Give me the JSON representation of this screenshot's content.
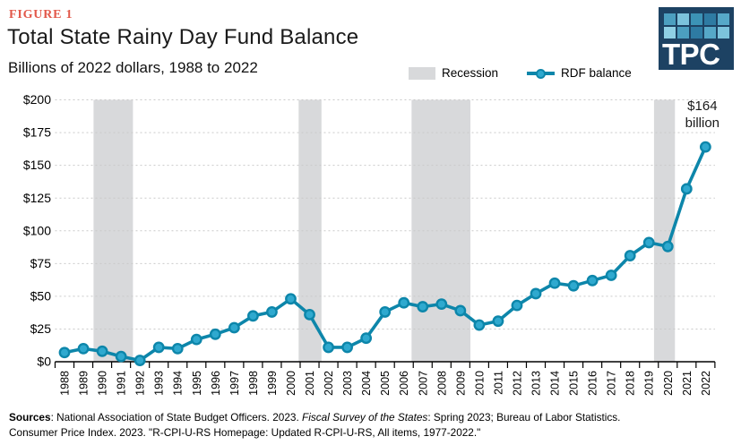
{
  "header": {
    "figure_label": "FIGURE 1",
    "title": "Total State Rainy Day Fund Balance",
    "subtitle": "Billions of 2022 dollars, 1988 to 2022"
  },
  "logo": {
    "text": "TPC",
    "background": "#1d4263",
    "squares_row1": [
      "#4c9fc0",
      "#7cc3dc",
      "#3c93b6",
      "#2e7ba3",
      "#56a8c8"
    ],
    "squares_row2": [
      "#8fd0e5",
      "#4c9fc0",
      "#2e7ba3",
      "#56a8c8",
      "#7cc3dc"
    ]
  },
  "legend": {
    "recession_label": "Recession",
    "rdf_label": "RDF balance",
    "recession_color": "#d8d9db",
    "line_color": "#0d86aa"
  },
  "chart_data": {
    "type": "line",
    "title": "Total State Rainy Day Fund Balance",
    "subtitle": "Billions of 2022 dollars, 1988 to 2022",
    "unit": "billions of 2022 USD",
    "x": [
      1988,
      1989,
      1990,
      1991,
      1992,
      1993,
      1994,
      1995,
      1996,
      1997,
      1998,
      1999,
      2000,
      2001,
      2002,
      2003,
      2004,
      2005,
      2006,
      2007,
      2008,
      2009,
      2010,
      2011,
      2012,
      2013,
      2014,
      2015,
      2016,
      2017,
      2018,
      2019,
      2020,
      2021,
      2022
    ],
    "series": [
      {
        "name": "RDF balance",
        "values": [
          7,
          10,
          8,
          4,
          1,
          11,
          10,
          17,
          21,
          26,
          35,
          38,
          48,
          36,
          11,
          11,
          18,
          38,
          45,
          42,
          44,
          39,
          28,
          31,
          43,
          52,
          60,
          58,
          62,
          66,
          81,
          91,
          88,
          132,
          164
        ]
      }
    ],
    "ylim": [
      0,
      200
    ],
    "ytick_step": 25,
    "ytick_prefix": "$",
    "ytick_labels": [
      "$0",
      "$25",
      "$50",
      "$75",
      "$100",
      "$125",
      "$150",
      "$175",
      "$200"
    ],
    "xtick_rotation": -90,
    "grid": "horizontal-dotted",
    "legend_position": "top",
    "recession_bands": [
      [
        1989.54,
        1991.63
      ],
      [
        2000.42,
        2001.63
      ],
      [
        2006.41,
        2009.53
      ],
      [
        2019.27,
        2020.38
      ]
    ],
    "annotation": {
      "x": 2022,
      "y": 164,
      "lines": [
        "$164",
        "billion"
      ]
    },
    "colors": {
      "line": "#0d86aa",
      "marker_fill": "#2fa9cf",
      "recession": "#d8d9db",
      "grid": "#c9c9c9",
      "axis": "#000000"
    }
  },
  "footer": {
    "sources_bold": "Sources",
    "line1_a": ": National Association of State Budget Officers. 2023. ",
    "line1_italic": "Fiscal Survey of the States",
    "line1_b": ": Spring 2023; Bureau of Labor Statistics.",
    "line2": "Consumer Price Index. 2023. \"R-CPI-U-RS Homepage: Updated R-CPI-U-RS, All items, 1977-2022.\""
  }
}
